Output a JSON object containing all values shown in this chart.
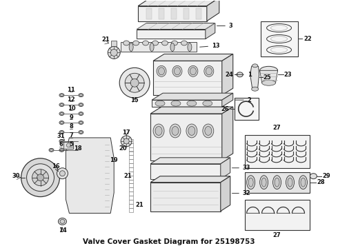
{
  "bg_color": "#ffffff",
  "lc": "#333333",
  "fig_width": 4.9,
  "fig_height": 3.6,
  "dpi": 100,
  "title": "Valve Cover Gasket Diagram for 25198753",
  "title_fontsize": 7.5,
  "label_fontsize": 6.0,
  "part_label_color": "#111111"
}
